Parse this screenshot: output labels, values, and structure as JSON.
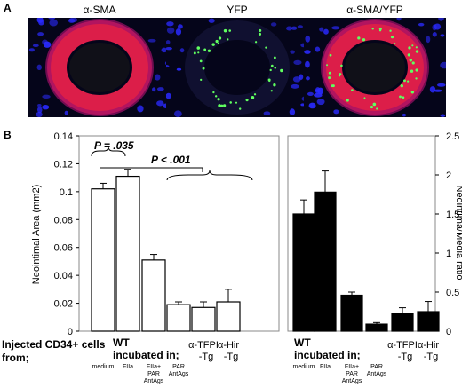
{
  "panel_a": {
    "label": "A",
    "images": [
      {
        "title": "α-SMA"
      },
      {
        "title": "YFP"
      },
      {
        "title": "α-SMA/YFP"
      }
    ]
  },
  "panel_b": {
    "label": "B",
    "injected_label_line1": "Injected CD34+ cells",
    "injected_label_line2": "from;",
    "wt_label": "WT",
    "incubated_label": "incubated in;",
    "group_labels": [
      {
        "line1": "α-TFPI",
        "line2": "-Tg"
      },
      {
        "line1": "α-Hir",
        "line2": "-Tg"
      }
    ],
    "annotation_p1": "P = .035",
    "annotation_p2": "P < .001",
    "category_labels": [
      {
        "lines": [
          "medium"
        ]
      },
      {
        "lines": [
          "FIIa"
        ]
      },
      {
        "lines": [
          "FIIa+",
          "PAR",
          "AntAgs"
        ]
      },
      {
        "lines": [
          "PAR",
          "AntAgs"
        ]
      }
    ]
  },
  "colors": {
    "left_bar_fill": "#ffffff",
    "right_bar_fill": "#000000",
    "sma": "#ff2040",
    "nuclei": "#2a2aff",
    "yfp": "#60ff60"
  },
  "chart_data": [
    {
      "type": "bar",
      "categories": [
        "medium",
        "FIIa",
        "FIIa+ PAR AntAgs",
        "PAR AntAgs",
        "α-TFPI -Tg",
        "α-Hir -Tg"
      ],
      "values": [
        0.102,
        0.111,
        0.051,
        0.019,
        0.017,
        0.021
      ],
      "errors": [
        0.004,
        0.005,
        0.004,
        0.002,
        0.004,
        0.009
      ],
      "ylabel": "Neointimal Area (mm2)",
      "ylim": [
        0,
        0.14
      ],
      "yticks": [
        0,
        0.02,
        0.04,
        0.06,
        0.08,
        0.1,
        0.12,
        0.14
      ],
      "ytick_labels": [
        "0",
        "0.02",
        "0.04",
        "0.06",
        "0.08",
        "0.1",
        "0.12",
        "0.14"
      ]
    },
    {
      "type": "bar",
      "categories": [
        "medium",
        "FIIa",
        "FIIa+ PAR AntAgs",
        "PAR AntAgs",
        "α-TFPI -Tg",
        "α-Hir -Tg"
      ],
      "values": [
        1.5,
        1.78,
        0.46,
        0.09,
        0.23,
        0.25
      ],
      "errors": [
        0.18,
        0.27,
        0.04,
        0.02,
        0.07,
        0.13
      ],
      "ylabel": "Neointima/Media ratio",
      "ylim": [
        0,
        2.5
      ],
      "yticks": [
        0,
        0.5,
        1,
        1.5,
        2,
        2.5
      ],
      "ytick_labels": [
        "0",
        "0.5",
        "1",
        "1.5",
        "2",
        "2.5"
      ]
    }
  ]
}
